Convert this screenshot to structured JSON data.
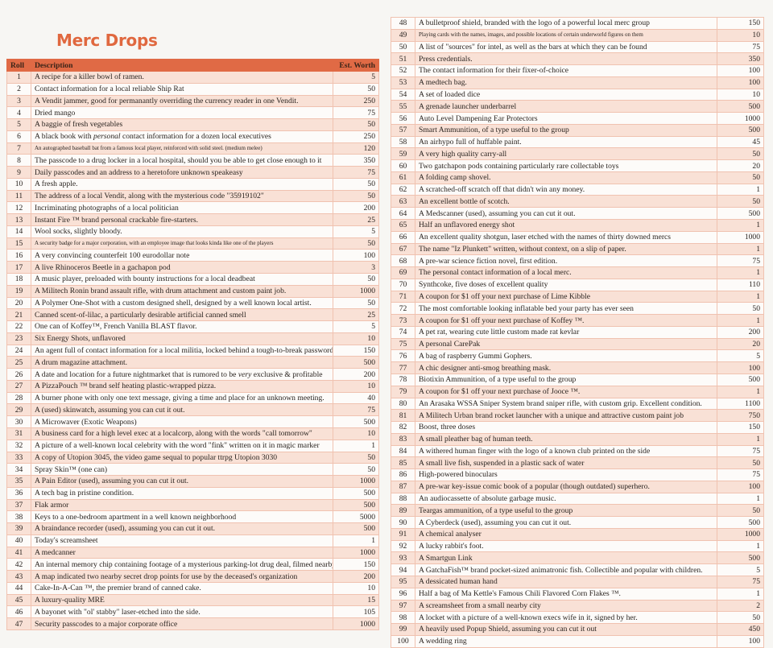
{
  "title": "Merc Drops",
  "header": {
    "roll": "Roll",
    "description": "Description",
    "worth": "Est. Worth"
  },
  "colors": {
    "header": "#e06a45",
    "title": "#e0683f",
    "row_shade": "#f9e1d6"
  },
  "rows": [
    {
      "roll": "1",
      "desc": "A recipe for a killer bowl of ramen.",
      "worth": "5"
    },
    {
      "roll": "2",
      "desc": "Contact information for a local reliable Ship Rat",
      "worth": "50"
    },
    {
      "roll": "3",
      "desc": "A Vendit jammer, good for permanantly overriding the currency reader in one Vendit.",
      "worth": "250"
    },
    {
      "roll": "4",
      "desc": "Dried mango",
      "worth": "75"
    },
    {
      "roll": "5",
      "desc": "A baggie of fresh vegetables",
      "worth": "50"
    },
    {
      "roll": "6",
      "desc": "A black book with ",
      "em": "personal",
      "post": " contact information for a dozen local executives",
      "worth": "250"
    },
    {
      "roll": "7",
      "desc": "An autographed baseball bat from a famous local player, reinforced with solid steel. (medium melee)",
      "worth": "120",
      "small": true
    },
    {
      "roll": "8",
      "desc": "The passcode to a drug locker in a local hospital, should you be able to get close enough to it",
      "worth": "350"
    },
    {
      "roll": "9",
      "desc": "Daily passcodes and an address to a heretofore unknown speakeasy",
      "worth": "75"
    },
    {
      "roll": "10",
      "desc": "A fresh apple.",
      "worth": "50"
    },
    {
      "roll": "11",
      "desc": "The address of a local Vendit, along with the mysterious code \"35919102\"",
      "worth": "50"
    },
    {
      "roll": "12",
      "desc": "Incriminating photographs of a local politician",
      "worth": "200"
    },
    {
      "roll": "13",
      "desc": "Instant Fire ™ brand personal crackable fire-starters.",
      "worth": "25"
    },
    {
      "roll": "14",
      "desc": "Wool socks, slightly bloody.",
      "worth": "5"
    },
    {
      "roll": "15",
      "desc": "A security badge for a major corporation, with an employee image that looks kinda like one of the players",
      "worth": "50",
      "small": true
    },
    {
      "roll": "16",
      "desc": "A very convincing counterfeit 100 eurodollar note",
      "worth": "100"
    },
    {
      "roll": "17",
      "desc": "A live Rhinoceros Beetle in a gachapon pod",
      "worth": "3"
    },
    {
      "roll": "18",
      "desc": "A music player, preloaded with bounty instructions for a local deadbeat",
      "worth": "50"
    },
    {
      "roll": "19",
      "desc": "A Militech Ronin brand assault rifle, with drum attachment and custom paint job.",
      "worth": "1000"
    },
    {
      "roll": "20",
      "desc": "A Polymer One-Shot with a custom designed shell, designed by a well known local artist.",
      "worth": "50"
    },
    {
      "roll": "21",
      "desc": "Canned scent-of-lilac, a particularly desirable artificial canned smell",
      "worth": "25"
    },
    {
      "roll": "22",
      "desc": "One can of Koffey™, French Vanilla BLAST flavor.",
      "worth": "5"
    },
    {
      "roll": "23",
      "desc": "Six Energy Shots, unflavored",
      "worth": "10"
    },
    {
      "roll": "24",
      "desc": "An agent full of contact information for a local militia, locked behind a tough-to-break password",
      "worth": "150"
    },
    {
      "roll": "25",
      "desc": "A drum magazine attachment.",
      "worth": "500"
    },
    {
      "roll": "26",
      "desc": "A date and location for a future nightmarket that is rumored to be ",
      "em": "very",
      "post": " exclusive & profitable",
      "worth": "200"
    },
    {
      "roll": "27",
      "desc": "A PizzaPouch ™ brand self heating plastic-wrapped pizza.",
      "worth": "10"
    },
    {
      "roll": "28",
      "desc": "A burner phone with only one text message, giving a time and place for an unknown meeting.",
      "worth": "40"
    },
    {
      "roll": "29",
      "desc": "A (used) skinwatch, assuming you can cut it out.",
      "worth": "75"
    },
    {
      "roll": "30",
      "desc": "A Microwaver (Exotic Weapons)",
      "worth": "500"
    },
    {
      "roll": "31",
      "desc": "A business card for a high level exec at a localcorp, along with the words \"call tomorrow\"",
      "worth": "10"
    },
    {
      "roll": "32",
      "desc": "A picture of a well-known local celebrity with the word \"fink\" written on it in magic marker",
      "worth": "1"
    },
    {
      "roll": "33",
      "desc": "A copy of Utopion 3045, the video game sequal to popular ttrpg Utopion 3030",
      "worth": "50"
    },
    {
      "roll": "34",
      "desc": "Spray Skin™ (one can)",
      "worth": "50"
    },
    {
      "roll": "35",
      "desc": "A Pain Editor (used), assuming you can cut it out.",
      "worth": "1000"
    },
    {
      "roll": "36",
      "desc": "A tech bag in pristine condition.",
      "worth": "500"
    },
    {
      "roll": "37",
      "desc": "Flak armor",
      "worth": "500"
    },
    {
      "roll": "38",
      "desc": "Keys to a one-bedroom apartment in a well known neighborhood",
      "worth": "5000"
    },
    {
      "roll": "39",
      "desc": "A braindance recorder (used), assuming you can cut it out.",
      "worth": "500"
    },
    {
      "roll": "40",
      "desc": "Today's screamsheet",
      "worth": "1"
    },
    {
      "roll": "41",
      "desc": "A medcanner",
      "worth": "1000"
    },
    {
      "roll": "42",
      "desc": "An internal memory chip containing footage of a mysterious parking-lot drug deal, filmed nearby.",
      "worth": "150"
    },
    {
      "roll": "43",
      "desc": "A map indicated two nearby secret drop points for use by the deceased's organization",
      "worth": "200"
    },
    {
      "roll": "44",
      "desc": "Cake-In-A-Can ™, the premier brand of canned cake.",
      "worth": "10"
    },
    {
      "roll": "45",
      "desc": "A luxury-quality MRE",
      "worth": "15"
    },
    {
      "roll": "46",
      "desc": "A bayonet with \"ol' stabby\" laser-etched into the side.",
      "worth": "105"
    },
    {
      "roll": "47",
      "desc": "Security passcodes to a major corporate office",
      "worth": "1000"
    },
    {
      "roll": "48",
      "desc": "A bulletproof shield, branded with the logo of a powerful local merc group",
      "worth": "150"
    },
    {
      "roll": "49",
      "desc": "Playing cards with the names, images, and possible locations of certain underworld figures on them",
      "worth": "10",
      "small": true
    },
    {
      "roll": "50",
      "desc": "A list of \"sources\" for intel, as well as the bars at which they can be found",
      "worth": "75"
    },
    {
      "roll": "51",
      "desc": "Press credentials.",
      "worth": "350"
    },
    {
      "roll": "52",
      "desc": "The contact information for their fixer-of-choice",
      "worth": "100"
    },
    {
      "roll": "53",
      "desc": "A medtech bag.",
      "worth": "100"
    },
    {
      "roll": "54",
      "desc": "A set of loaded dice",
      "worth": "10"
    },
    {
      "roll": "55",
      "desc": "A grenade launcher underbarrel",
      "worth": "500"
    },
    {
      "roll": "56",
      "desc": "Auto Level Dampening Ear Protectors",
      "worth": "1000"
    },
    {
      "roll": "57",
      "desc": "Smart Ammunition, of a type useful to the group",
      "worth": "500"
    },
    {
      "roll": "58",
      "desc": "An airhypo full of huffable paint.",
      "worth": "45"
    },
    {
      "roll": "59",
      "desc": "A very high quality carry-all",
      "worth": "50"
    },
    {
      "roll": "60",
      "desc": "Two gatchapon pods containing particularly rare collectable toys",
      "worth": "20"
    },
    {
      "roll": "61",
      "desc": "A folding camp shovel.",
      "worth": "50"
    },
    {
      "roll": "62",
      "desc": "A scratched-off scratch off that didn't win any money.",
      "worth": "1"
    },
    {
      "roll": "63",
      "desc": "An excellent bottle of scotch.",
      "worth": "50"
    },
    {
      "roll": "64",
      "desc": "A Medscanner (used), assuming you can cut it out.",
      "worth": "500"
    },
    {
      "roll": "65",
      "desc": "Half an unflavored energy shot",
      "worth": "1"
    },
    {
      "roll": "66",
      "desc": "An excellent quality shotgun, laser etched with the names of thirty downed mercs",
      "worth": "1000"
    },
    {
      "roll": "67",
      "desc": "The name \"Iz Plunkett\" written, without context, on a slip of paper.",
      "worth": "1"
    },
    {
      "roll": "68",
      "desc": "A pre-war science fiction novel, first edition.",
      "worth": "75"
    },
    {
      "roll": "69",
      "desc": "The personal contact information of a local merc.",
      "worth": "1"
    },
    {
      "roll": "70",
      "desc": "Synthcoke, five doses of excellent quality",
      "worth": "110"
    },
    {
      "roll": "71",
      "desc": "A coupon for $1 off your next purchase of Lime Kibble",
      "worth": "1"
    },
    {
      "roll": "72",
      "desc": "The most comfortable looking inflatable bed your party has ever seen",
      "worth": "50"
    },
    {
      "roll": "73",
      "desc": "A coupon for $1 off your next purchase of Koffey ™.",
      "worth": "1"
    },
    {
      "roll": "74",
      "desc": "A pet rat, wearing cute little custom made rat kevlar",
      "worth": "200"
    },
    {
      "roll": "75",
      "desc": "A personal CarePak",
      "worth": "20"
    },
    {
      "roll": "76",
      "desc": "A bag of raspberry Gummi Gophers.",
      "worth": "5"
    },
    {
      "roll": "77",
      "desc": "A chic designer anti-smog breathing mask.",
      "worth": "100"
    },
    {
      "roll": "78",
      "desc": "Biotixin Ammunition, of a type useful to the group",
      "worth": "500"
    },
    {
      "roll": "79",
      "desc": "A coupon for $1 off your next purchase of Jooce ™.",
      "worth": "1"
    },
    {
      "roll": "80",
      "desc": "An Arasaka WSSA Sniper System brand sniper rifle, with custom grip. Excellent condition.",
      "worth": "1100"
    },
    {
      "roll": "81",
      "desc": "A Militech Urban brand rocket launcher with a unique and attractive custom paint job",
      "worth": "750"
    },
    {
      "roll": "82",
      "desc": "Boost, three doses",
      "worth": "150"
    },
    {
      "roll": "83",
      "desc": "A small pleather bag of human teeth.",
      "worth": "1"
    },
    {
      "roll": "84",
      "desc": "A withered human finger with the logo of a known club printed on the side",
      "worth": "75"
    },
    {
      "roll": "85",
      "desc": "A small live fish, suspended in a plastic sack of water",
      "worth": "50"
    },
    {
      "roll": "86",
      "desc": "High-powered binoculars",
      "worth": "75"
    },
    {
      "roll": "87",
      "desc": "A pre-war key-issue comic book of a popular (though outdated) superhero.",
      "worth": "100"
    },
    {
      "roll": "88",
      "desc": "An audiocassette of absolute garbage music.",
      "worth": "1"
    },
    {
      "roll": "89",
      "desc": "Teargas ammunition, of a type useful to the group",
      "worth": "50"
    },
    {
      "roll": "90",
      "desc": "A Cyberdeck (used), assuming you can cut it out.",
      "worth": "500"
    },
    {
      "roll": "91",
      "desc": "A chemical analyser",
      "worth": "1000"
    },
    {
      "roll": "92",
      "desc": "A lucky rabbit's foot.",
      "worth": "1"
    },
    {
      "roll": "93",
      "desc": "A Smartgun Link",
      "worth": "500"
    },
    {
      "roll": "94",
      "desc": "A GatchaFish™ brand pocket-sized animatronic fish. Collectible and popular with children.",
      "worth": "5"
    },
    {
      "roll": "95",
      "desc": "A dessicated human hand",
      "worth": "75"
    },
    {
      "roll": "96",
      "desc": "Half a bag of Ma Kettle's Famous Chili Flavored Corn Flakes ™.",
      "worth": "1"
    },
    {
      "roll": "97",
      "desc": "A screamsheet from a small nearby city",
      "worth": "2"
    },
    {
      "roll": "98",
      "desc": "A locket with a picture of a well-known execs wife in it, signed by her.",
      "worth": "50"
    },
    {
      "roll": "99",
      "desc": "A heavily used Popup Shield, assuming you can cut it out",
      "worth": "450"
    },
    {
      "roll": "100",
      "desc": "A wedding ring",
      "worth": "100"
    }
  ]
}
